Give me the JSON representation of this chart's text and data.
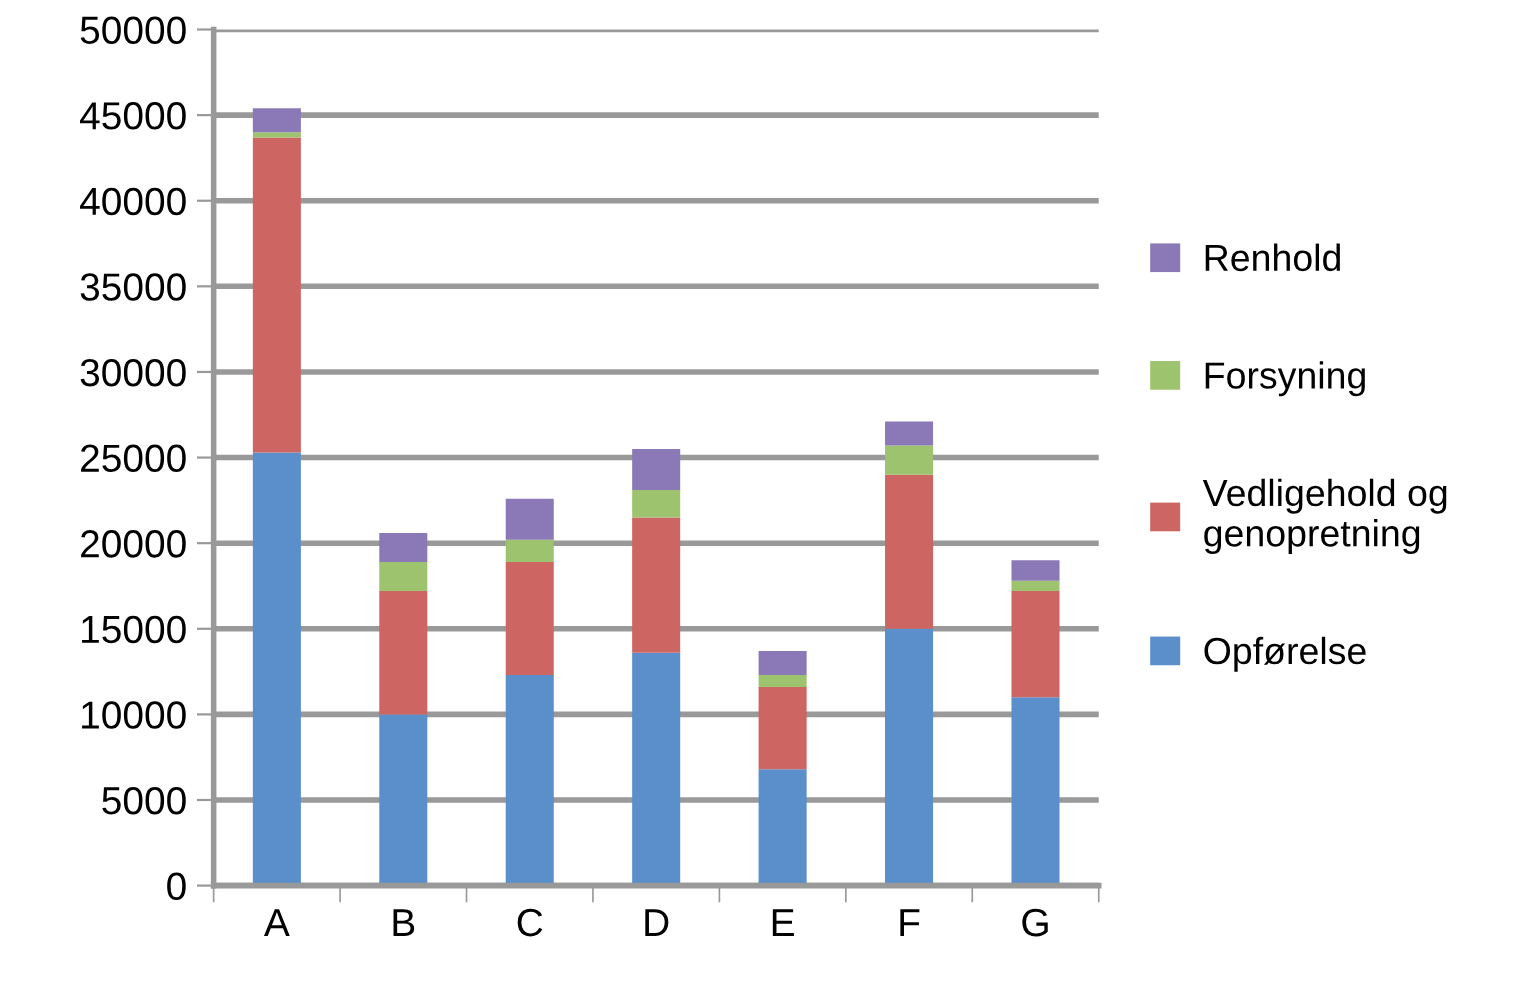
{
  "chart_data": {
    "type": "bar",
    "stacked": true,
    "categories": [
      "A",
      "B",
      "C",
      "D",
      "E",
      "F",
      "G"
    ],
    "series": [
      {
        "name": "Opførelse",
        "color": "#5a8fcb",
        "values": [
          25300,
          10000,
          12300,
          13600,
          6800,
          15000,
          11000
        ]
      },
      {
        "name": "Vedligehold og\ngenopretning",
        "color": "#cd6662",
        "values": [
          18400,
          7200,
          6600,
          7900,
          4800,
          9000,
          6200
        ]
      },
      {
        "name": "Forsyning",
        "color": "#9dc36f",
        "values": [
          300,
          1700,
          1300,
          1600,
          700,
          1700,
          600
        ]
      },
      {
        "name": "Renhold",
        "color": "#8b78b6",
        "values": [
          1400,
          1700,
          2400,
          2400,
          1400,
          1400,
          1200
        ]
      }
    ],
    "ylim": [
      0,
      50000
    ],
    "yticks": [
      0,
      5000,
      10000,
      15000,
      20000,
      25000,
      30000,
      35000,
      40000,
      45000,
      50000
    ],
    "grid": "y",
    "legend": "right"
  }
}
